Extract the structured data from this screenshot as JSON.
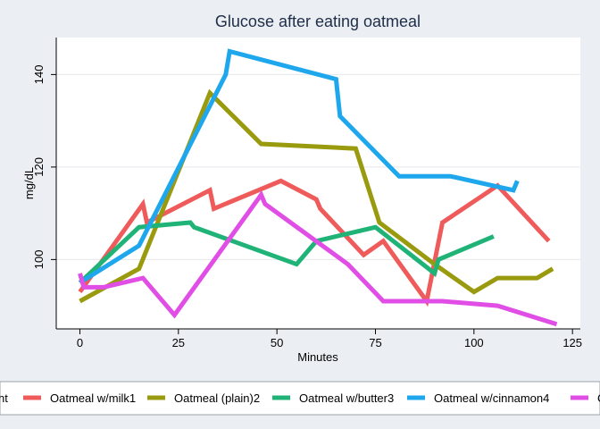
{
  "chart_data": {
    "type": "line",
    "title": "Glucose after eating oatmeal",
    "xlabel": "Minutes",
    "ylabel": "mg/dL",
    "xlim": [
      -6,
      127
    ],
    "ylim": [
      85,
      148
    ],
    "xticks": [
      0,
      25,
      50,
      75,
      100,
      125
    ],
    "yticks": [
      100,
      120,
      140
    ],
    "grid": true,
    "legend_position": "bottom",
    "legend_title": "nt",
    "series": [
      {
        "name": "Oatmeal w/milk1",
        "color": "#ef5b5b",
        "points": [
          [
            0,
            93
          ],
          [
            16,
            112
          ],
          [
            17,
            108
          ],
          [
            33,
            115
          ],
          [
            34,
            111
          ],
          [
            51,
            117
          ],
          [
            60,
            113
          ],
          [
            61,
            111
          ],
          [
            72,
            101
          ],
          [
            77,
            104
          ],
          [
            88,
            91
          ],
          [
            92,
            108
          ],
          [
            106,
            116
          ],
          [
            119,
            104
          ]
        ]
      },
      {
        "name": "Oatmeal (plain)2",
        "color": "#9a9a0e",
        "points": [
          [
            0,
            91
          ],
          [
            15,
            98
          ],
          [
            33,
            136
          ],
          [
            46,
            125
          ],
          [
            70,
            124
          ],
          [
            76,
            108
          ],
          [
            90,
            99
          ],
          [
            100,
            93
          ],
          [
            106,
            96
          ],
          [
            116,
            96
          ],
          [
            120,
            98
          ]
        ]
      },
      {
        "name": "Oatmeal w/butter3",
        "color": "#20b377",
        "points": [
          [
            0,
            95
          ],
          [
            15,
            107
          ],
          [
            28,
            108
          ],
          [
            29,
            107
          ],
          [
            55,
            99
          ],
          [
            60,
            104
          ],
          [
            75,
            107
          ],
          [
            90,
            97
          ],
          [
            91,
            100
          ],
          [
            105,
            105
          ]
        ]
      },
      {
        "name": "Oatmeal w/cinnamon4",
        "color": "#1ea7ec",
        "points": [
          [
            0,
            95
          ],
          [
            15,
            103
          ],
          [
            37,
            140
          ],
          [
            38,
            145
          ],
          [
            65,
            139
          ],
          [
            66,
            131
          ],
          [
            81,
            118
          ],
          [
            94,
            118
          ],
          [
            110,
            115
          ],
          [
            111,
            117
          ]
        ]
      },
      {
        "name": "",
        "color": "#e04ee6",
        "points": [
          [
            0,
            97
          ],
          [
            1,
            94
          ],
          [
            6,
            94
          ],
          [
            16,
            96
          ],
          [
            24,
            88
          ],
          [
            46,
            114
          ],
          [
            47,
            112
          ],
          [
            68,
            99
          ],
          [
            77,
            91
          ],
          [
            92,
            91
          ],
          [
            106,
            90
          ],
          [
            121,
            86
          ]
        ]
      }
    ],
    "legend_entries": [
      "Oatmeal w/milk1",
      "Oatmeal (plain)2",
      "Oatmeal w/butter3",
      "Oatmeal w/cinnamon4",
      "O"
    ]
  }
}
